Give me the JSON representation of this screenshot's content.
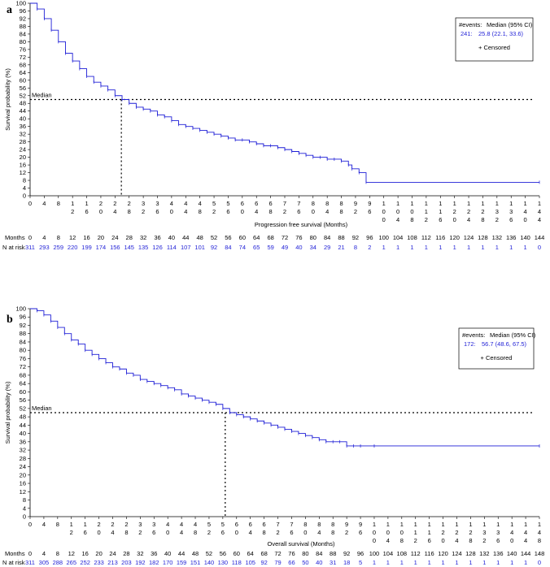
{
  "chart_data": [
    {
      "type": "line",
      "panel_label": "a",
      "xlabel": "Progression free survival (Months)",
      "ylabel": "Survival probability (%)",
      "xlim": [
        0,
        144
      ],
      "ylim": [
        0,
        100
      ],
      "x_ticks": [
        "0",
        "4",
        "8",
        "12",
        "16",
        "20",
        "24",
        "28",
        "32",
        "36",
        "40",
        "44",
        "48",
        "52",
        "56",
        "60",
        "64",
        "68",
        "72",
        "76",
        "80",
        "84",
        "88",
        "92",
        "96",
        "100",
        "104",
        "108",
        "112",
        "116",
        "120",
        "124",
        "128",
        "132",
        "136",
        "140",
        "144"
      ],
      "y_ticks": [
        "0",
        "4",
        "8",
        "12",
        "16",
        "20",
        "24",
        "28",
        "32",
        "36",
        "40",
        "44",
        "48",
        "52",
        "56",
        "60",
        "64",
        "68",
        "72",
        "76",
        "80",
        "84",
        "88",
        "92",
        "96",
        "100"
      ],
      "median_label": "Median",
      "median_x": 25.8,
      "legend": {
        "header_events": "#events:",
        "header_median": "Median (95% CI)",
        "events": "241:",
        "median_ci": "25.8 (22.1, 33.6)",
        "censored": "+ Censored"
      },
      "risk_table": {
        "months_label": "Months",
        "risk_label": "N at risk",
        "months": [
          "0",
          "4",
          "8",
          "12",
          "16",
          "20",
          "24",
          "28",
          "32",
          "36",
          "40",
          "44",
          "48",
          "52",
          "56",
          "60",
          "64",
          "68",
          "72",
          "76",
          "80",
          "84",
          "88",
          "92",
          "96",
          "100",
          "104",
          "108",
          "112",
          "116",
          "120",
          "124",
          "128",
          "132",
          "136",
          "140",
          "144"
        ],
        "n_at_risk": [
          "311",
          "293",
          "259",
          "220",
          "199",
          "174",
          "156",
          "145",
          "135",
          "126",
          "114",
          "107",
          "101",
          "92",
          "84",
          "74",
          "65",
          "59",
          "49",
          "40",
          "34",
          "29",
          "21",
          "8",
          "2",
          "1",
          "1",
          "1",
          "1",
          "1",
          "1",
          "1",
          "1",
          "1",
          "1",
          "1",
          "0"
        ]
      },
      "series": [
        {
          "name": "PFS",
          "color": "#1f1fd6",
          "x": [
            0,
            2,
            4,
            6,
            8,
            10,
            12,
            14,
            16,
            18,
            20,
            22,
            24,
            26,
            28,
            30,
            32,
            34,
            36,
            38,
            40,
            42,
            44,
            46,
            48,
            50,
            52,
            54,
            56,
            58,
            60,
            62,
            64,
            66,
            68,
            70,
            72,
            74,
            76,
            78,
            80,
            82,
            84,
            86,
            88,
            90,
            91,
            93,
            95,
            144
          ],
          "y": [
            100,
            97,
            92,
            86,
            80,
            74,
            70,
            66,
            62,
            59,
            57,
            55,
            52,
            50,
            48,
            46,
            45,
            44,
            42,
            41,
            39,
            37,
            36,
            35,
            34,
            33,
            32,
            31,
            30,
            29,
            29,
            28,
            27,
            26,
            26,
            25,
            24,
            23,
            22,
            21,
            20,
            20,
            19,
            19,
            18,
            16,
            14,
            12,
            7,
            7
          ]
        }
      ]
    },
    {
      "type": "line",
      "panel_label": "b",
      "xlabel": "Overall survival (Months)",
      "ylabel": "Survival probability (%)",
      "xlim": [
        0,
        148
      ],
      "ylim": [
        0,
        100
      ],
      "x_ticks": [
        "0",
        "4",
        "8",
        "12",
        "16",
        "20",
        "24",
        "28",
        "32",
        "36",
        "40",
        "44",
        "48",
        "52",
        "56",
        "60",
        "64",
        "68",
        "72",
        "76",
        "80",
        "84",
        "88",
        "92",
        "96",
        "100",
        "104",
        "108",
        "112",
        "116",
        "120",
        "124",
        "128",
        "132",
        "136",
        "140",
        "144",
        "148"
      ],
      "y_ticks": [
        "0",
        "4",
        "8",
        "12",
        "16",
        "20",
        "24",
        "28",
        "32",
        "36",
        "40",
        "44",
        "48",
        "52",
        "56",
        "60",
        "64",
        "68",
        "72",
        "76",
        "80",
        "84",
        "88",
        "92",
        "96",
        "100"
      ],
      "median_label": "Median",
      "median_x": 56.7,
      "legend": {
        "header_events": "#events:",
        "header_median": "Median (95% CI)",
        "events": "172:",
        "median_ci": "56.7 (48.6, 67.5)",
        "censored": "+ Censored"
      },
      "risk_table": {
        "months_label": "Months",
        "risk_label": "N at risk",
        "months": [
          "0",
          "4",
          "8",
          "12",
          "16",
          "20",
          "24",
          "28",
          "32",
          "36",
          "40",
          "44",
          "48",
          "52",
          "56",
          "60",
          "64",
          "68",
          "72",
          "76",
          "80",
          "84",
          "88",
          "92",
          "96",
          "100",
          "104",
          "108",
          "112",
          "116",
          "120",
          "124",
          "128",
          "132",
          "136",
          "140",
          "144",
          "148"
        ],
        "n_at_risk": [
          "311",
          "305",
          "288",
          "265",
          "252",
          "233",
          "213",
          "203",
          "192",
          "182",
          "170",
          "159",
          "151",
          "140",
          "130",
          "118",
          "105",
          "92",
          "79",
          "66",
          "50",
          "40",
          "31",
          "18",
          "5",
          "1",
          "1",
          "1",
          "1",
          "1",
          "1",
          "1",
          "1",
          "1",
          "1",
          "1",
          "1",
          "0"
        ]
      },
      "series": [
        {
          "name": "OS",
          "color": "#1f1fd6",
          "x": [
            0,
            2,
            4,
            6,
            8,
            10,
            12,
            14,
            16,
            18,
            20,
            22,
            24,
            26,
            28,
            30,
            32,
            34,
            36,
            38,
            40,
            42,
            44,
            46,
            48,
            50,
            52,
            54,
            56,
            58,
            60,
            62,
            64,
            66,
            68,
            70,
            72,
            74,
            76,
            78,
            80,
            82,
            84,
            86,
            88,
            90,
            92,
            94,
            96,
            100,
            148
          ],
          "y": [
            100,
            99,
            97,
            94,
            91,
            88,
            85,
            83,
            80,
            78,
            76,
            74,
            72,
            71,
            69,
            68,
            66,
            65,
            64,
            63,
            62,
            61,
            59,
            58,
            57,
            56,
            55,
            54,
            52,
            50,
            49,
            48,
            47,
            46,
            45,
            44,
            43,
            42,
            41,
            40,
            39,
            38,
            37,
            36,
            36,
            36,
            34,
            34,
            34,
            34,
            34
          ]
        }
      ]
    }
  ]
}
